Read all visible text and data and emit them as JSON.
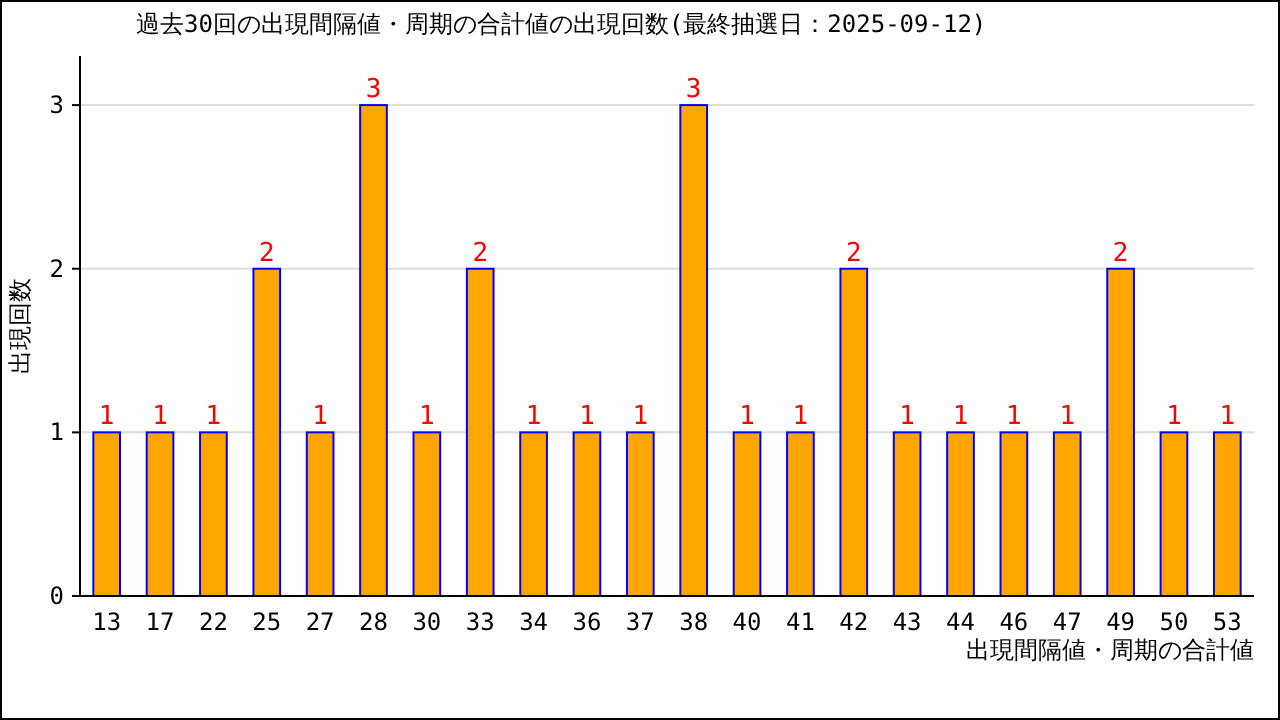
{
  "chart_data": {
    "type": "bar",
    "title": "過去30回の出現間隔値・周期の合計値の出現回数(最終抽選日：2025-09-12)",
    "xlabel": "出現間隔値・周期の合計値",
    "ylabel": "出現回数",
    "categories": [
      "13",
      "17",
      "22",
      "25",
      "27",
      "28",
      "30",
      "33",
      "34",
      "36",
      "37",
      "38",
      "40",
      "41",
      "42",
      "43",
      "44",
      "46",
      "47",
      "49",
      "50",
      "53"
    ],
    "values": [
      1,
      1,
      1,
      2,
      1,
      3,
      1,
      2,
      1,
      1,
      1,
      3,
      1,
      1,
      2,
      1,
      1,
      1,
      1,
      2,
      1,
      1
    ],
    "color": "#ffa500",
    "ylim": [
      0,
      3.3
    ],
    "yticks": [
      0,
      1,
      2,
      3
    ],
    "grid": "y",
    "data_labels": true
  }
}
